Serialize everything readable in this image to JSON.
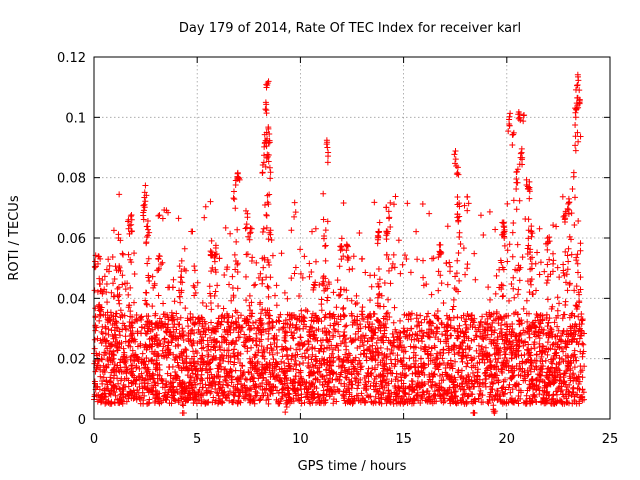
{
  "chart_data": {
    "type": "scatter",
    "title": "Day 179 of 2014, Rate Of TEC Index for receiver karl",
    "xlabel": "GPS time / hours",
    "ylabel": "ROTI / TECUs",
    "xlim": [
      0,
      25
    ],
    "ylim": [
      0,
      0.12
    ],
    "xticks": [
      0,
      5,
      10,
      15,
      20,
      25
    ],
    "xtick_labels": [
      "0",
      "5",
      "10",
      "15",
      "20",
      "25"
    ],
    "yticks": [
      0,
      0.02,
      0.04,
      0.06,
      0.08,
      0.1,
      0.12
    ],
    "ytick_labels": [
      "0",
      "0.02",
      "0.04",
      "0.06",
      "0.08",
      "0.1",
      "0.12"
    ],
    "grid": true,
    "marker": "+",
    "series": [
      {
        "name": "ROTI",
        "color": "#ff0000",
        "x_range": [
          0,
          23.75
        ],
        "typical_band": [
          0.005,
          0.035
        ],
        "notable_points": [
          [
            0.1,
            0.053
          ],
          [
            0.25,
            0.054
          ],
          [
            0.3,
            0.044
          ],
          [
            1.2,
            0.048
          ],
          [
            1.7,
            0.066
          ],
          [
            1.8,
            0.065
          ],
          [
            2.5,
            0.075
          ],
          [
            2.4,
            0.069
          ],
          [
            2.6,
            0.063
          ],
          [
            3.1,
            0.052
          ],
          [
            4.2,
            0.05
          ],
          [
            5.7,
            0.057
          ],
          [
            5.9,
            0.055
          ],
          [
            6.8,
            0.075
          ],
          [
            7.0,
            0.082
          ],
          [
            6.9,
            0.079
          ],
          [
            7.4,
            0.066
          ],
          [
            7.6,
            0.062
          ],
          [
            8.2,
            0.083
          ],
          [
            8.3,
            0.093
          ],
          [
            8.35,
            0.103
          ],
          [
            8.4,
            0.109
          ],
          [
            8.5,
            0.094
          ],
          [
            8.45,
            0.088
          ],
          [
            11.2,
            0.06
          ],
          [
            11.3,
            0.09
          ],
          [
            12.0,
            0.058
          ],
          [
            12.3,
            0.055
          ],
          [
            13.8,
            0.06
          ],
          [
            14.3,
            0.069
          ],
          [
            14.2,
            0.062
          ],
          [
            16.8,
            0.058
          ],
          [
            17.5,
            0.086
          ],
          [
            17.6,
            0.083
          ],
          [
            17.65,
            0.07
          ],
          [
            17.7,
            0.068
          ],
          [
            19.8,
            0.064
          ],
          [
            19.9,
            0.062
          ],
          [
            20.1,
            0.099
          ],
          [
            20.3,
            0.092
          ],
          [
            20.5,
            0.08
          ],
          [
            20.6,
            0.1
          ],
          [
            20.8,
            0.101
          ],
          [
            20.7,
            0.087
          ],
          [
            21.0,
            0.077
          ],
          [
            21.1,
            0.076
          ],
          [
            21.2,
            0.062
          ],
          [
            22.0,
            0.059
          ],
          [
            22.8,
            0.068
          ],
          [
            23.0,
            0.07
          ],
          [
            23.2,
            0.079
          ],
          [
            23.3,
            0.091
          ],
          [
            23.35,
            0.102
          ],
          [
            23.4,
            0.108
          ],
          [
            23.45,
            0.112
          ],
          [
            23.5,
            0.105
          ],
          [
            4.3,
            0.003
          ],
          [
            18.4,
            0.003
          ],
          [
            19.4,
            0.004
          ],
          [
            9.3,
            0.004
          ]
        ]
      }
    ]
  }
}
